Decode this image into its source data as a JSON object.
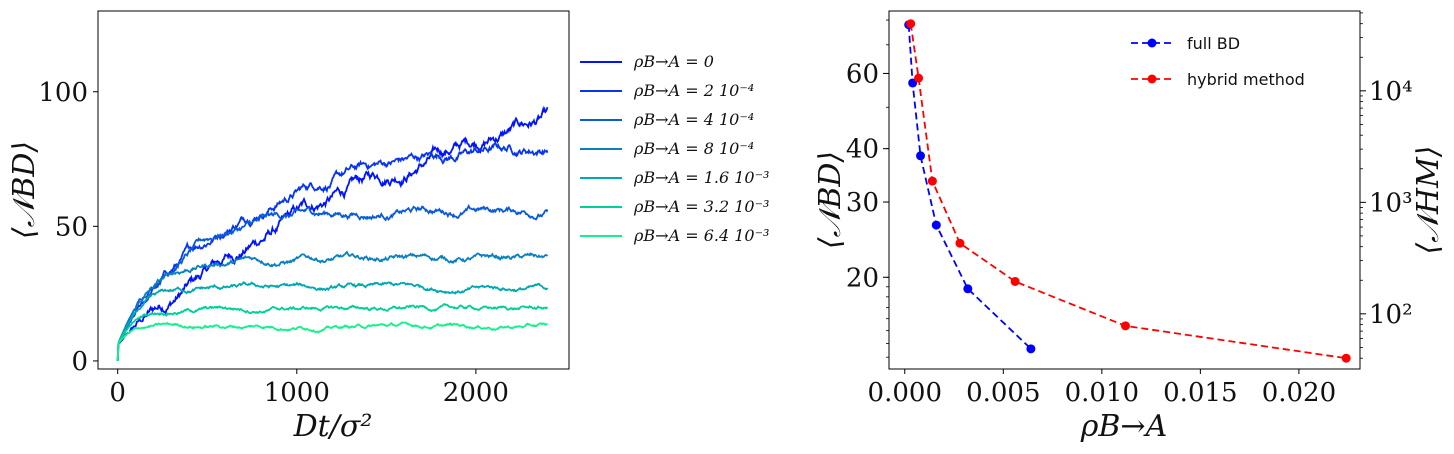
{
  "chart_data": [
    {
      "type": "line",
      "title": "",
      "xlabel": "Dt/σ²",
      "ylabel": "⟨𝒩BD⟩",
      "xlim": [
        -110,
        2520
      ],
      "ylim": [
        -3,
        130
      ],
      "xticks": [
        0,
        1000,
        2000
      ],
      "yticks": [
        0,
        50,
        100
      ],
      "legend_position": "outside-right",
      "series": [
        {
          "name": "ρB→A = 0",
          "color": "#0014ff",
          "amp": 126,
          "tau": 2000,
          "noise": 2.4
        },
        {
          "name": "ρB→A = 2 10⁻⁴",
          "color": "#0836f0",
          "amp": 82,
          "tau": 700,
          "noise": 1.9
        },
        {
          "name": "ρB→A = 4 10⁻⁴",
          "color": "#0a5bd8",
          "amp": 56,
          "tau": 330,
          "noise": 1.4
        },
        {
          "name": "ρB→A = 8 10⁻⁴",
          "color": "#0a80c0",
          "amp": 38,
          "tau": 190,
          "noise": 1.1
        },
        {
          "name": "ρB→A = 1.6 10⁻³",
          "color": "#00a8b0",
          "amp": 27,
          "tau": 130,
          "noise": 0.9
        },
        {
          "name": "ρB→A = 3.2 10⁻³",
          "color": "#00cf99",
          "amp": 19.5,
          "tau": 95,
          "noise": 0.8
        },
        {
          "name": "ρB→A = 6.4 10⁻³",
          "color": "#11f28a",
          "amp": 13,
          "tau": 65,
          "noise": 0.7
        }
      ]
    },
    {
      "type": "line",
      "title": "",
      "xlabel": "ρB→A",
      "ylabel_left": "⟨𝒩BD⟩",
      "ylabel_right": "⟨𝒩HM⟩",
      "xlim": [
        -0.0008,
        0.0231
      ],
      "xticks": [
        0.0,
        0.005,
        0.01,
        0.015,
        0.02
      ],
      "xtick_labels": [
        "0.000",
        "0.005",
        "0.010",
        "0.015",
        "0.020"
      ],
      "ylim_left_log": [
        12.2,
        84
      ],
      "yticks_left": [
        20,
        30,
        40,
        60
      ],
      "ylim_right_log": [
        32,
        52000
      ],
      "yticks_right_labels": [
        "10²",
        "10³",
        "10⁴"
      ],
      "legend_position": "upper-right",
      "series": [
        {
          "name": "full BD",
          "color": "#0000ff",
          "axis": "left",
          "x": [
            0.0002,
            0.0004,
            0.0008,
            0.0016,
            0.0032,
            0.0064
          ],
          "y": [
            78,
            57,
            38.5,
            26.5,
            18.8,
            13.6
          ]
        },
        {
          "name": "hybrid method",
          "color": "#ff0000",
          "axis": "right",
          "x": [
            0.0003,
            0.0007,
            0.0014,
            0.0028,
            0.0056,
            0.0112,
            0.0224
          ],
          "y": [
            40000,
            13000,
            1550,
            430,
            195,
            78,
            40
          ]
        }
      ]
    }
  ]
}
